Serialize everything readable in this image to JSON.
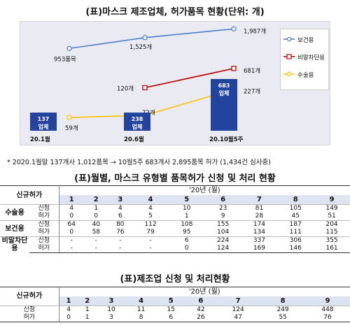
{
  "title1": "(표)마스크 제조업체, 허가품목 현황(단위: 개)",
  "chart_data": {
    "type": "line",
    "categories": [
      "20.1월",
      "20.6월",
      "20.10월5주"
    ],
    "series": [
      {
        "name": "보건용",
        "color": "#4d7ec9",
        "values": [
          953,
          1525,
          1987
        ],
        "labels": [
          "953품목",
          "1,525개",
          "1,987개"
        ]
      },
      {
        "name": "비말차단용",
        "color": "#c00000",
        "values": [
          null,
          120,
          681
        ],
        "labels": [
          "",
          "120개",
          "681개"
        ]
      },
      {
        "name": "수술용",
        "color": "#ffc000",
        "values": [
          59,
          72,
          227
        ],
        "labels": [
          "59개",
          "72개",
          "227개"
        ]
      }
    ],
    "bars": {
      "values": [
        137,
        238,
        683
      ],
      "num_labels": [
        "137",
        "238",
        "683"
      ],
      "unit_label": "업체",
      "color": "#23449e"
    }
  },
  "note": "* 2020.1월말 137개사 1,012품목 → 10월5주 683개사 2,895품목 허가 (1,434건 심사중)",
  "title2": "(표)월별, 마스크 유형별 품목허가 신청 및 처리 현황",
  "table1": {
    "corner": "신규허가",
    "year_header": "'20년 (월)",
    "months": [
      "1",
      "2",
      "3",
      "4",
      "5",
      "6",
      "7",
      "8",
      "9"
    ],
    "groups": [
      {
        "name": "수술용",
        "rows": [
          {
            "type": "신청",
            "values": [
              "4",
              "1",
              "4",
              "4",
              "10",
              "23",
              "81",
              "105",
              "149"
            ]
          },
          {
            "type": "허가",
            "values": [
              "0",
              "0",
              "6",
              "5",
              "1",
              "9",
              "28",
              "45",
              "51"
            ]
          }
        ]
      },
      {
        "name": "보건용",
        "rows": [
          {
            "type": "신청",
            "values": [
              "64",
              "40",
              "80",
              "112",
              "108",
              "155",
              "174",
              "187",
              "204"
            ]
          },
          {
            "type": "허가",
            "values": [
              "0",
              "58",
              "76",
              "79",
              "95",
              "104",
              "134",
              "111",
              "115"
            ]
          }
        ]
      },
      {
        "name": "비말차단용",
        "rows": [
          {
            "type": "신청",
            "values": [
              "-",
              "-",
              "-",
              "-",
              "6",
              "224",
              "337",
              "306",
              "355"
            ]
          },
          {
            "type": "허가",
            "values": [
              "-",
              "-",
              "-",
              "-",
              "0",
              "124",
              "169",
              "146",
              "161"
            ]
          }
        ]
      }
    ]
  },
  "title3": "(표)제조업 신청 및 처리현황",
  "table2": {
    "corner": "신규허가",
    "year_header": "'20년 (월)",
    "months": [
      "1",
      "2",
      "3",
      "4",
      "5",
      "6",
      "7",
      "8",
      "9"
    ],
    "rows": [
      {
        "type": "신청",
        "values": [
          "4",
          "1",
          "10",
          "11",
          "15",
          "42",
          "124",
          "249",
          "448"
        ]
      },
      {
        "type": "허가",
        "values": [
          "0",
          "1",
          "3",
          "8",
          "6",
          "26",
          "47",
          "55",
          "76"
        ]
      }
    ]
  }
}
